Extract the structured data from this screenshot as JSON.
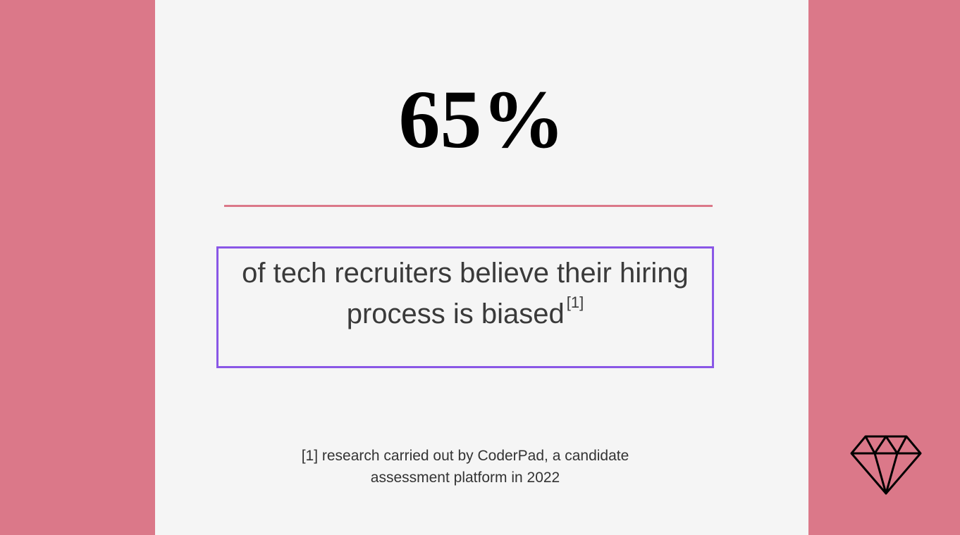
{
  "stat": "65%",
  "statement": {
    "text": "of tech recruiters believe their hiring process is biased",
    "citation": "[1]"
  },
  "footnote": "[1] research carried out by CoderPad, a candidate assessment platform in 2022"
}
